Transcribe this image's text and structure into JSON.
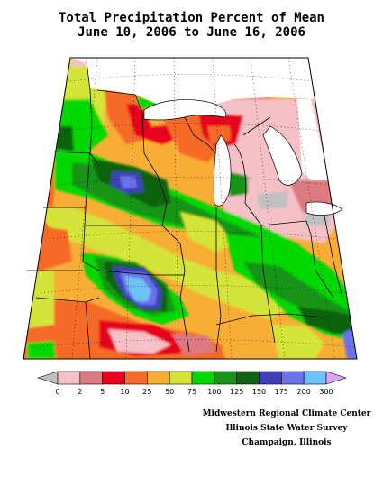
{
  "title": {
    "line1": "Total Precipitation Percent of Mean",
    "line2": "June 10, 2006 to June 16, 2006"
  },
  "legend": {
    "ticks": [
      "0",
      "2",
      "5",
      "10",
      "25",
      "50",
      "75",
      "100",
      "125",
      "150",
      "175",
      "200",
      "300"
    ],
    "colors": [
      "#f5c0c6",
      "#dc7a7f",
      "#e8001e",
      "#f56a27",
      "#f8ae35",
      "#d5e437",
      "#00d900",
      "#189418",
      "#116311",
      "#3f3fbb",
      "#6a73ea",
      "#6cc4f6"
    ],
    "under_color": "#c0c0c0",
    "over_color": "#d7a7f4"
  },
  "credits": {
    "line1": "Midwestern Regional Climate Center",
    "line2": "Illinois State Water Survey",
    "line3": "Champaign, Illinois"
  }
}
